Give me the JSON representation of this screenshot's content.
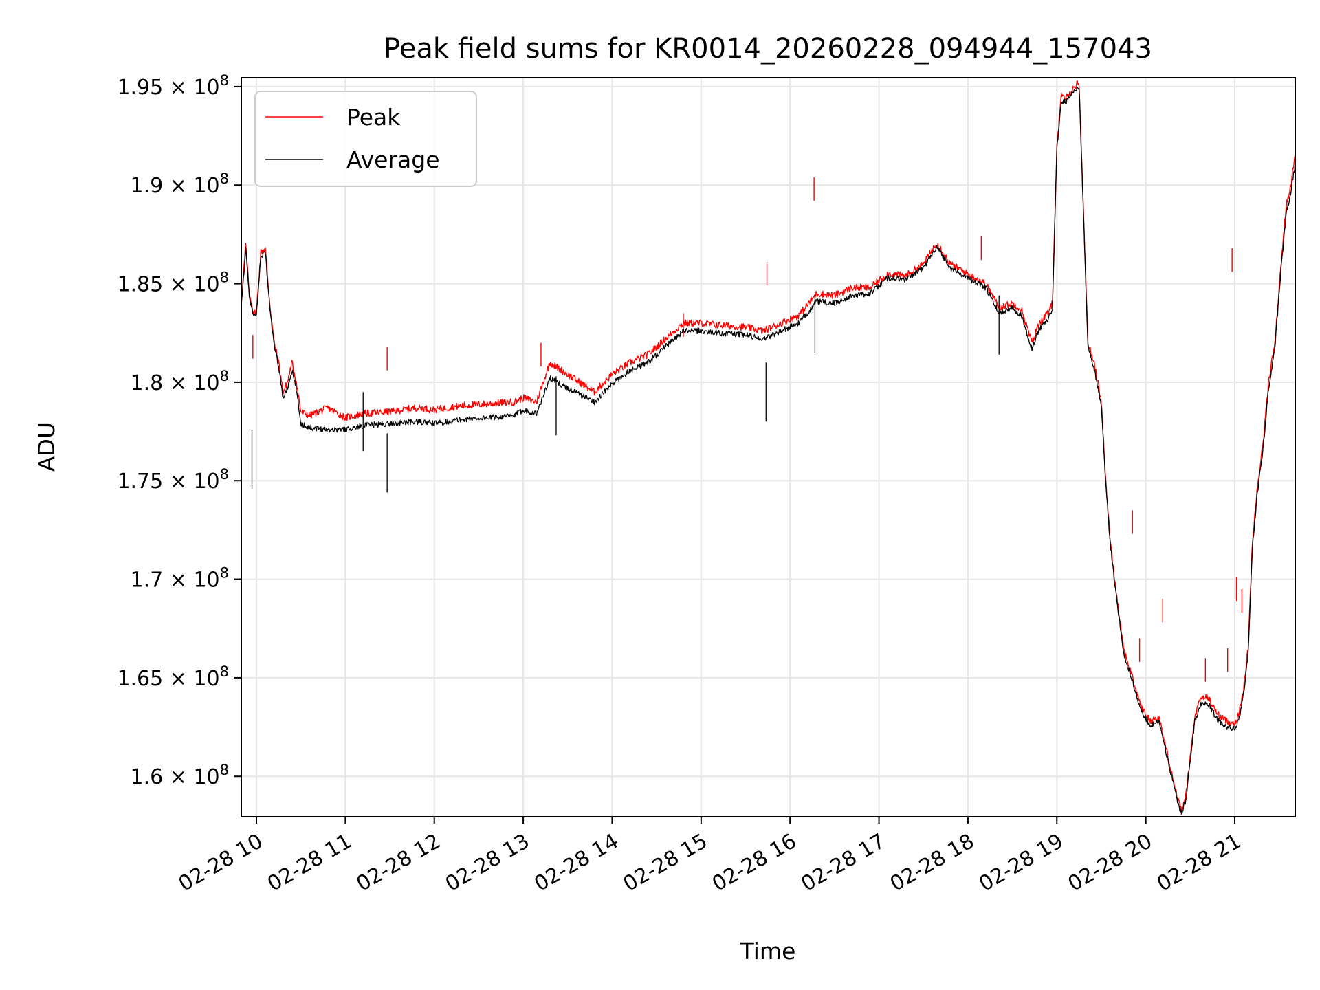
{
  "chart_data": {
    "type": "line",
    "title": "Peak field sums for KR0014_20260228_094944_157043",
    "xlabel": "Time",
    "ylabel": "ADU",
    "grid": true,
    "legend_position": "top-left",
    "xlim": [
      9.83,
      21.68
    ],
    "ylim": [
      157950000.0,
      195450000.0
    ],
    "x_unit": "hours on 02-28",
    "x_ticks": [
      10,
      11,
      12,
      13,
      14,
      15,
      16,
      17,
      18,
      19,
      20,
      21
    ],
    "x_tick_labels": [
      "02-28 10",
      "02-28 11",
      "02-28 12",
      "02-28 13",
      "02-28 14",
      "02-28 15",
      "02-28 16",
      "02-28 17",
      "02-28 18",
      "02-28 19",
      "02-28 20",
      "02-28 21"
    ],
    "y_ticks": [
      160000000.0,
      165000000.0,
      170000000.0,
      175000000.0,
      180000000.0,
      185000000.0,
      190000000.0,
      195000000.0
    ],
    "y_tick_mantissas": [
      "1.6",
      "1.65",
      "1.7",
      "1.75",
      "1.8",
      "1.85",
      "1.9",
      "1.95"
    ],
    "y_tick_times": "×",
    "y_tick_base": "10",
    "y_tick_exp": "8",
    "series": [
      {
        "name": "Peak",
        "color": "#ff0000",
        "x": [
          9.83,
          9.88,
          9.92,
          9.97,
          10.0,
          10.05,
          10.1,
          10.15,
          10.2,
          10.25,
          10.3,
          10.35,
          10.4,
          10.45,
          10.5,
          10.6,
          10.8,
          11.0,
          11.2,
          11.5,
          11.8,
          12.0,
          12.3,
          12.6,
          12.9,
          13.0,
          13.15,
          13.3,
          13.5,
          13.8,
          14.0,
          14.2,
          14.4,
          14.6,
          14.8,
          15.0,
          15.2,
          15.5,
          15.7,
          15.9,
          16.1,
          16.3,
          16.5,
          16.7,
          16.9,
          17.1,
          17.3,
          17.5,
          17.65,
          17.8,
          18.0,
          18.2,
          18.35,
          18.5,
          18.6,
          18.72,
          18.8,
          18.9,
          18.95,
          19.0,
          19.05,
          19.1,
          19.2,
          19.25,
          19.35,
          19.42,
          19.5,
          19.55,
          19.6,
          19.65,
          19.75,
          19.85,
          19.95,
          20.05,
          20.15,
          20.25,
          20.35,
          20.4,
          20.45,
          20.5,
          20.55,
          20.62,
          20.7,
          20.8,
          20.9,
          21.0,
          21.05,
          21.1,
          21.15,
          21.2,
          21.25,
          21.32,
          21.38,
          21.45,
          21.52,
          21.58,
          21.63,
          21.68
        ],
        "values": [
          184000000.0,
          187000000.0,
          184500000.0,
          183500000.0,
          183600000.0,
          186600000.0,
          186800000.0,
          184000000.0,
          182000000.0,
          181000000.0,
          179500000.0,
          180000000.0,
          181000000.0,
          180000000.0,
          178500000.0,
          178300000.0,
          178700000.0,
          178200000.0,
          178400000.0,
          178500000.0,
          178700000.0,
          178600000.0,
          178800000.0,
          178900000.0,
          179000000.0,
          179200000.0,
          179000000.0,
          181000000.0,
          180400000.0,
          179500000.0,
          180400000.0,
          181000000.0,
          181400000.0,
          182200000.0,
          183000000.0,
          183000000.0,
          182900000.0,
          182800000.0,
          182600000.0,
          183000000.0,
          183400000.0,
          184500000.0,
          184400000.0,
          184800000.0,
          184800000.0,
          185500000.0,
          185400000.0,
          186000000.0,
          187100000.0,
          186000000.0,
          185500000.0,
          185000000.0,
          183800000.0,
          184000000.0,
          183700000.0,
          182000000.0,
          183000000.0,
          183500000.0,
          184000000.0,
          192000000.0,
          194500000.0,
          194400000.0,
          195000000.0,
          195200000.0,
          182000000.0,
          181000000.0,
          179000000.0,
          175000000.0,
          172000000.0,
          170000000.0,
          166500000.0,
          165000000.0,
          163500000.0,
          162800000.0,
          163000000.0,
          161000000.0,
          159000000.0,
          158200000.0,
          159000000.0,
          161000000.0,
          163000000.0,
          164000000.0,
          164000000.0,
          163200000.0,
          162800000.0,
          162700000.0,
          163200000.0,
          164500000.0,
          166500000.0,
          172000000.0,
          174500000.0,
          177000000.0,
          180000000.0,
          182000000.0,
          186000000.0,
          189000000.0,
          190000000.0,
          191500000.0
        ]
      },
      {
        "name": "Average",
        "color": "#000000",
        "x": [
          9.83,
          9.88,
          9.92,
          9.97,
          10.0,
          10.05,
          10.1,
          10.15,
          10.2,
          10.25,
          10.3,
          10.35,
          10.4,
          10.45,
          10.5,
          10.6,
          10.8,
          11.0,
          11.2,
          11.5,
          11.8,
          12.0,
          12.3,
          12.6,
          12.9,
          13.0,
          13.15,
          13.3,
          13.5,
          13.8,
          14.0,
          14.2,
          14.4,
          14.6,
          14.8,
          15.0,
          15.2,
          15.5,
          15.7,
          15.9,
          16.1,
          16.3,
          16.5,
          16.7,
          16.9,
          17.1,
          17.3,
          17.5,
          17.65,
          17.8,
          18.0,
          18.2,
          18.35,
          18.5,
          18.6,
          18.72,
          18.8,
          18.9,
          18.95,
          19.0,
          19.05,
          19.1,
          19.2,
          19.25,
          19.35,
          19.42,
          19.5,
          19.55,
          19.6,
          19.65,
          19.75,
          19.85,
          19.95,
          20.05,
          20.15,
          20.25,
          20.35,
          20.4,
          20.45,
          20.5,
          20.55,
          20.62,
          20.7,
          20.8,
          20.9,
          21.0,
          21.05,
          21.1,
          21.15,
          21.2,
          21.25,
          21.32,
          21.38,
          21.45,
          21.52,
          21.58,
          21.63,
          21.68
        ],
        "values": [
          183800000.0,
          186800000.0,
          184300000.0,
          183300000.0,
          183400000.0,
          186400000.0,
          186600000.0,
          183800000.0,
          181800000.0,
          180800000.0,
          179200000.0,
          179700000.0,
          180600000.0,
          179600000.0,
          177900000.0,
          177700000.0,
          177600000.0,
          177600000.0,
          177800000.0,
          177900000.0,
          178000000.0,
          177900000.0,
          178100000.0,
          178200000.0,
          178300000.0,
          178600000.0,
          178400000.0,
          180200000.0,
          179700000.0,
          179000000.0,
          179900000.0,
          180600000.0,
          181000000.0,
          181800000.0,
          182600000.0,
          182600000.0,
          182500000.0,
          182400000.0,
          182200000.0,
          182600000.0,
          183000000.0,
          184100000.0,
          184000000.0,
          184400000.0,
          184500000.0,
          185300000.0,
          185200000.0,
          185800000.0,
          186900000.0,
          185800000.0,
          185300000.0,
          184800000.0,
          183500000.0,
          183800000.0,
          183400000.0,
          181700000.0,
          182700000.0,
          183200000.0,
          183700000.0,
          191800000.0,
          194300000.0,
          194200000.0,
          194800000.0,
          195000000.0,
          181800000.0,
          180700000.0,
          178800000.0,
          174800000.0,
          171800000.0,
          169800000.0,
          166300000.0,
          164800000.0,
          163300000.0,
          162600000.0,
          162800000.0,
          160800000.0,
          158800000.0,
          158100000.0,
          158800000.0,
          160800000.0,
          162800000.0,
          163700000.0,
          163700000.0,
          162900000.0,
          162500000.0,
          162400000.0,
          162900000.0,
          164200000.0,
          166200000.0,
          171700000.0,
          174200000.0,
          176700000.0,
          179700000.0,
          181700000.0,
          185700000.0,
          188600000.0,
          189600000.0,
          191100000.0
        ]
      }
    ],
    "peak_spikes": [
      {
        "x": 9.96,
        "y": 182400000.0
      },
      {
        "x": 11.47,
        "y": 181800000.0
      },
      {
        "x": 15.74,
        "y": 186100000.0
      },
      {
        "x": 16.27,
        "y": 190400000.0
      },
      {
        "x": 18.15,
        "y": 187400000.0
      },
      {
        "x": 19.85,
        "y": 173500000.0
      },
      {
        "x": 20.19,
        "y": 169000000.0
      },
      {
        "x": 19.93,
        "y": 167000000.0
      },
      {
        "x": 20.67,
        "y": 166000000.0
      },
      {
        "x": 20.92,
        "y": 166500000.0
      },
      {
        "x": 20.97,
        "y": 186800000.0
      },
      {
        "x": 21.02,
        "y": 170100000.0
      },
      {
        "x": 21.08,
        "y": 169500000.0
      },
      {
        "x": 13.2,
        "y": 182000000.0
      },
      {
        "x": 14.8,
        "y": 183500000.0
      }
    ],
    "average_dips": [
      {
        "x": 9.95,
        "y": 174600000.0
      },
      {
        "x": 11.47,
        "y": 174400000.0
      },
      {
        "x": 11.2,
        "y": 176500000.0
      },
      {
        "x": 13.37,
        "y": 177300000.0
      },
      {
        "x": 15.73,
        "y": 178000000.0
      },
      {
        "x": 16.28,
        "y": 181500000.0
      },
      {
        "x": 18.35,
        "y": 181400000.0
      }
    ]
  }
}
